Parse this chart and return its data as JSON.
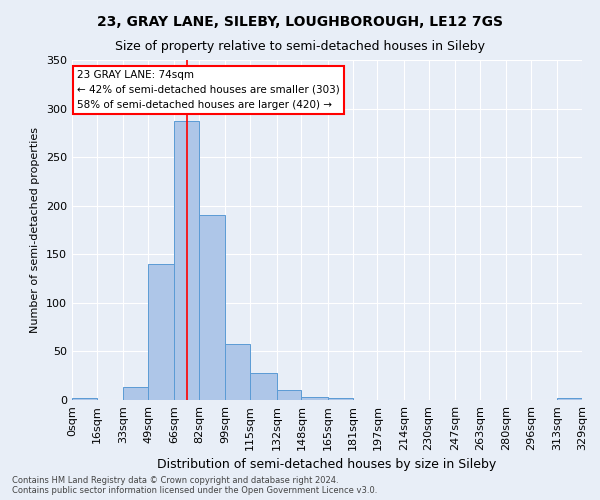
{
  "title": "23, GRAY LANE, SILEBY, LOUGHBOROUGH, LE12 7GS",
  "subtitle": "Size of property relative to semi-detached houses in Sileby",
  "xlabel": "Distribution of semi-detached houses by size in Sileby",
  "ylabel": "Number of semi-detached properties",
  "bin_edges": [
    0,
    16,
    33,
    49,
    66,
    82,
    99,
    115,
    132,
    148,
    165,
    181,
    197,
    214,
    230,
    247,
    263,
    280,
    296,
    313,
    329
  ],
  "bin_labels": [
    "0sqm",
    "16sqm",
    "33sqm",
    "49sqm",
    "66sqm",
    "82sqm",
    "99sqm",
    "115sqm",
    "132sqm",
    "148sqm",
    "165sqm",
    "181sqm",
    "197sqm",
    "214sqm",
    "230sqm",
    "247sqm",
    "263sqm",
    "280sqm",
    "296sqm",
    "313sqm",
    "329sqm"
  ],
  "counts": [
    2,
    0,
    13,
    140,
    287,
    190,
    58,
    28,
    10,
    3,
    2,
    0,
    0,
    0,
    0,
    0,
    0,
    0,
    0,
    2
  ],
  "bar_color": "#aec6e8",
  "bar_edge_color": "#5b9bd5",
  "red_line_x": 74,
  "annotation_box_text": "23 GRAY LANE: 74sqm\n← 42% of semi-detached houses are smaller (303)\n58% of semi-detached houses are larger (420) →",
  "annotation_box_color": "white",
  "annotation_box_edge_color": "red",
  "ylim": [
    0,
    350
  ],
  "yticks": [
    0,
    50,
    100,
    150,
    200,
    250,
    300,
    350
  ],
  "footer_line1": "Contains HM Land Registry data © Crown copyright and database right 2024.",
  "footer_line2": "Contains public sector information licensed under the Open Government Licence v3.0.",
  "bg_color": "#e8eef7",
  "plot_bg_color": "#e8eef7",
  "grid_color": "white",
  "title_fontsize": 10,
  "subtitle_fontsize": 9
}
